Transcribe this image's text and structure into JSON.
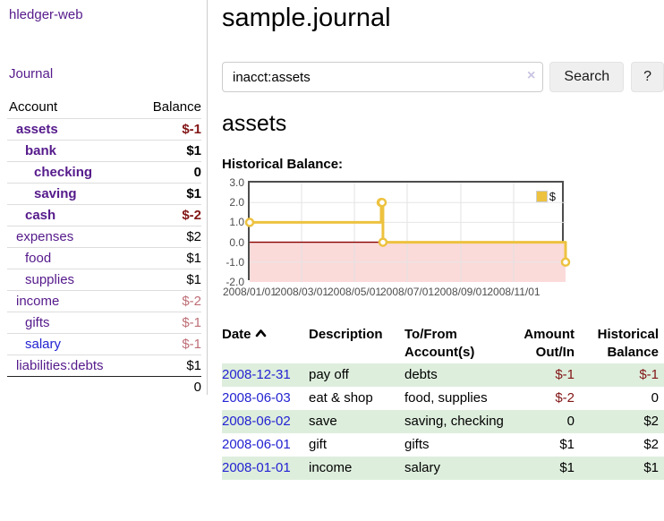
{
  "sidebar": {
    "brand": "hledger-web",
    "journal_link": "Journal",
    "accounts_table": {
      "header_account": "Account",
      "header_balance": "Balance",
      "accounts": [
        {
          "name": "assets",
          "balance": "$-1"
        },
        {
          "name": "bank",
          "balance": "$1"
        },
        {
          "name": "checking",
          "balance": "0"
        },
        {
          "name": "saving",
          "balance": "$1"
        },
        {
          "name": "cash",
          "balance": "$-2"
        },
        {
          "name": "expenses",
          "balance": "$2"
        },
        {
          "name": "food",
          "balance": "$1"
        },
        {
          "name": "supplies",
          "balance": "$1"
        },
        {
          "name": "income",
          "balance": "$-2"
        },
        {
          "name": "gifts",
          "balance": "$-1"
        },
        {
          "name": "salary",
          "balance": "$-1"
        },
        {
          "name": "liabilities:debts",
          "balance": "$1"
        }
      ],
      "total": "0"
    }
  },
  "main": {
    "title": "sample.journal",
    "search": {
      "value": "inacct:assets",
      "clear_icon": "×",
      "button_label": "Search",
      "help_label": "?"
    },
    "account_heading": "assets",
    "chart_label": "Historical Balance:",
    "register": {
      "header_date": "Date",
      "header_description": "Description",
      "header_tofrom": "To/From Account(s)",
      "header_amount": "Amount Out/In",
      "header_balance": "Historical Balance",
      "rows": [
        {
          "date": "2008-12-31",
          "description": "pay off",
          "accounts": "debts",
          "amount": "$-1",
          "balance": "$-1"
        },
        {
          "date": "2008-06-03",
          "description": "eat & shop",
          "accounts": "food, supplies",
          "amount": "$-2",
          "balance": "0"
        },
        {
          "date": "2008-06-02",
          "description": "save",
          "accounts": "saving, checking",
          "amount": "0",
          "balance": "$2"
        },
        {
          "date": "2008-06-01",
          "description": "gift",
          "accounts": "gifts",
          "amount": "$1",
          "balance": "$2"
        },
        {
          "date": "2008-01-01",
          "description": "income",
          "accounts": "salary",
          "amount": "$1",
          "balance": "$1"
        }
      ]
    }
  },
  "chart_data": {
    "type": "line",
    "title": "Historical Balance:",
    "step": true,
    "legend_position": "top-right",
    "series": [
      {
        "name": "$",
        "color": "#edc240",
        "points": [
          [
            "2008-01-01",
            1
          ],
          [
            "2008-06-01",
            2
          ],
          [
            "2008-06-02",
            2
          ],
          [
            "2008-06-03",
            0
          ],
          [
            "2008-12-31",
            -1
          ]
        ]
      }
    ],
    "x_range": [
      "2008-01-01",
      "2008-12-31"
    ],
    "y_range": [
      -2,
      3
    ],
    "x_ticks": [
      {
        "label": "2008/01/01",
        "date": "2008-01-01"
      },
      {
        "label": "2008/03/01",
        "date": "2008-03-01"
      },
      {
        "label": "2008/05/01",
        "date": "2008-05-01"
      },
      {
        "label": "2008/07/01",
        "date": "2008-07-01"
      },
      {
        "label": "2008/09/01",
        "date": "2008-09-01"
      },
      {
        "label": "2008/11/01",
        "date": "2008-11-01"
      }
    ],
    "y_ticks": [
      {
        "label": "3.0",
        "value": 3
      },
      {
        "label": "2.0",
        "value": 2
      },
      {
        "label": "1.0",
        "value": 1
      },
      {
        "label": "0.0",
        "value": 0
      },
      {
        "label": "-1.0",
        "value": -1
      },
      {
        "label": "-2.0",
        "value": -2
      }
    ],
    "grid": true,
    "zero_line_color": "#8b0000",
    "below_zero_fill": "#fbdada"
  }
}
